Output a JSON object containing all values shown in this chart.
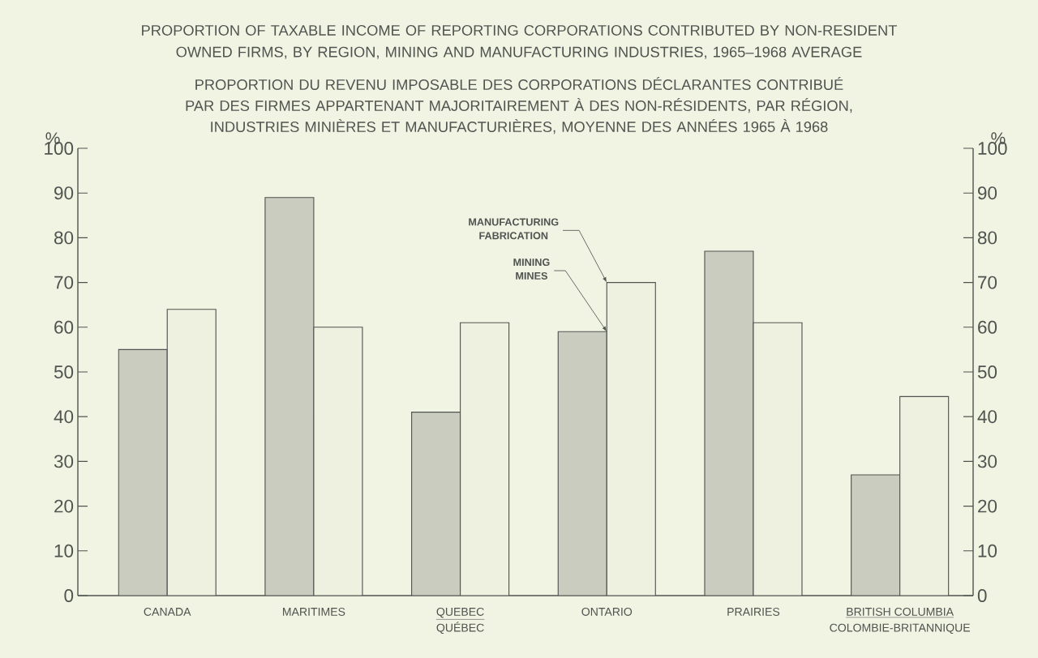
{
  "chart_data": {
    "type": "bar",
    "title": "PROPORTION OF TAXABLE INCOME OF REPORTING CORPORATIONS CONTRIBUTED BY NON-RESIDENT OWNED FIRMS, BY REGION, MINING AND MANUFACTURING INDUSTRIES, 1965–1968 AVERAGE",
    "subtitle": "PROPORTION DU REVENU IMPOSABLE DES CORPORATIONS DÉCLARANTES CONTRIBUÉ PAR DES FIRMES APPARTENANT MAJORITAIREMENT À DES NON-RÉSIDENTS, PAR RÉGION, INDUSTRIES MINIÈRES ET MANUFACTURIÈRES, MOYENNE DES ANNÉES 1965 À 1968",
    "ylabel": "%",
    "y2label": "%",
    "categories": [
      "CANADA",
      "MARITIMES",
      "QUEBEC",
      "ONTARIO",
      "PRAIRIES",
      "BRITISH COLUMBIA"
    ],
    "series": [
      {
        "name": "MINING",
        "color": "#c9ccbf",
        "values": [
          55,
          89,
          41,
          59,
          77,
          27
        ]
      },
      {
        "name": "MANUFACTURING",
        "color": "#eef0e0",
        "values": [
          64,
          60,
          61,
          70,
          61,
          44.5
        ]
      }
    ],
    "annotations": [
      {
        "text": "MINES",
        "x": "ONTARIO",
        "y": 59
      },
      "FABRICATION",
      "QUÉBEC",
      "COLOMBIE-BRITANNIQUE"
    ],
    "ylim": [
      0,
      100
    ],
    "yticks": [
      0,
      10,
      20,
      30,
      40,
      50,
      60,
      70,
      80,
      90,
      100
    ],
    "y2lim": [
      0,
      100
    ],
    "y2ticks": [
      0,
      10,
      20,
      30,
      40,
      50,
      60,
      70,
      80,
      90,
      100
    ],
    "grid": false
  }
}
